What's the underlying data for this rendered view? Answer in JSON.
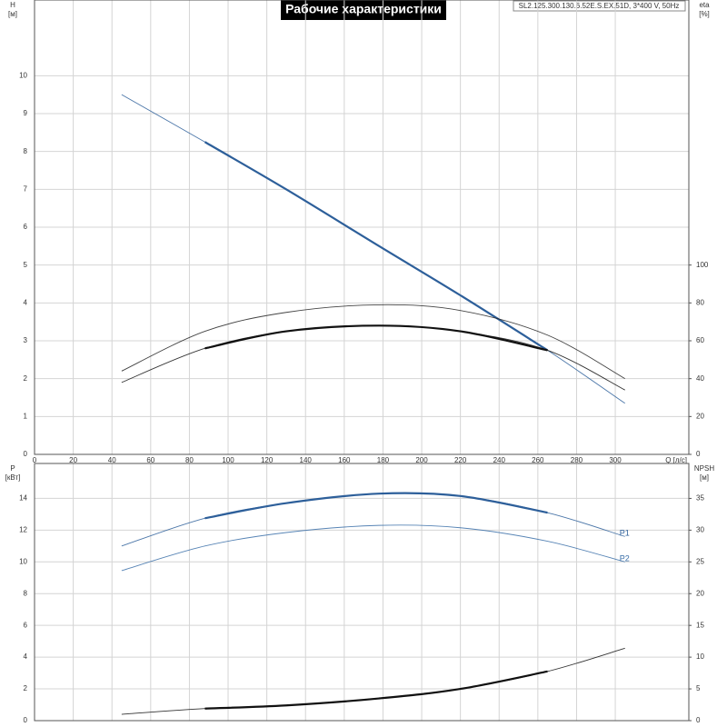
{
  "chart_data": [
    {
      "type": "line",
      "title": "Рабочие характеристики",
      "subtitle": "SL2.125.300.130.6.52E.S.EX.51D, 3*400 V, 50Hz",
      "ylabel": "H",
      "yunit": "[м]",
      "y2label": "eta",
      "y2unit": "[%]",
      "xlabel": "Q [л/с]",
      "xlim": [
        0,
        338
      ],
      "xticks": [
        0,
        20,
        40,
        60,
        80,
        100,
        120,
        140,
        160,
        180,
        200,
        220,
        240,
        260,
        280,
        300
      ],
      "ylim": [
        0,
        12
      ],
      "yticks": [
        0,
        1,
        2,
        3,
        4,
        5,
        6,
        7,
        8,
        9,
        10
      ],
      "y2lim": [
        0,
        240
      ],
      "y2ticks": [
        0,
        20,
        40,
        60,
        80,
        100
      ],
      "grid": true,
      "duty_range": [
        88,
        265
      ],
      "x": [
        45,
        88,
        130,
        178,
        220,
        265,
        305
      ],
      "series": [
        {
          "color": "#2d5f9a",
          "thick": true,
          "values": [
            9.5,
            8.25,
            7.0,
            5.5,
            4.2,
            2.75,
            1.35
          ]
        },
        {
          "color": "#222222",
          "thick": false,
          "axis": "y2",
          "values": [
            44,
            65,
            75,
            79,
            76,
            63,
            40
          ]
        },
        {
          "color": "#111111",
          "thick": true,
          "axis": "y2",
          "values": [
            38,
            56,
            65,
            68,
            65,
            55,
            34
          ]
        }
      ]
    },
    {
      "type": "line",
      "ylabel": "P",
      "yunit": "[кВт]",
      "y2label": "NPSH",
      "y2unit": "[м]",
      "xlim": [
        0,
        338
      ],
      "ylim": [
        0,
        16.2
      ],
      "yticks": [
        0,
        2,
        4,
        6,
        8,
        10,
        12,
        14
      ],
      "y2lim": [
        0,
        40.5
      ],
      "y2ticks": [
        0,
        5,
        10,
        15,
        20,
        25,
        30,
        35
      ],
      "grid": true,
      "duty_range": [
        88,
        265
      ],
      "x": [
        45,
        88,
        130,
        178,
        220,
        265,
        305
      ],
      "series": [
        {
          "name": "P1",
          "color": "#2d5f9a",
          "thick": true,
          "values": [
            11.0,
            12.75,
            13.7,
            14.3,
            14.15,
            13.1,
            11.6
          ]
        },
        {
          "name": "P2",
          "color": "#3a6ea8",
          "thick": false,
          "values": [
            9.45,
            11.0,
            11.85,
            12.3,
            12.15,
            11.3,
            10.0
          ]
        },
        {
          "color": "#111111",
          "thick": true,
          "axis": "y2",
          "values": [
            1.0,
            1.9,
            2.4,
            3.5,
            5.0,
            7.75,
            11.4
          ]
        }
      ]
    }
  ]
}
